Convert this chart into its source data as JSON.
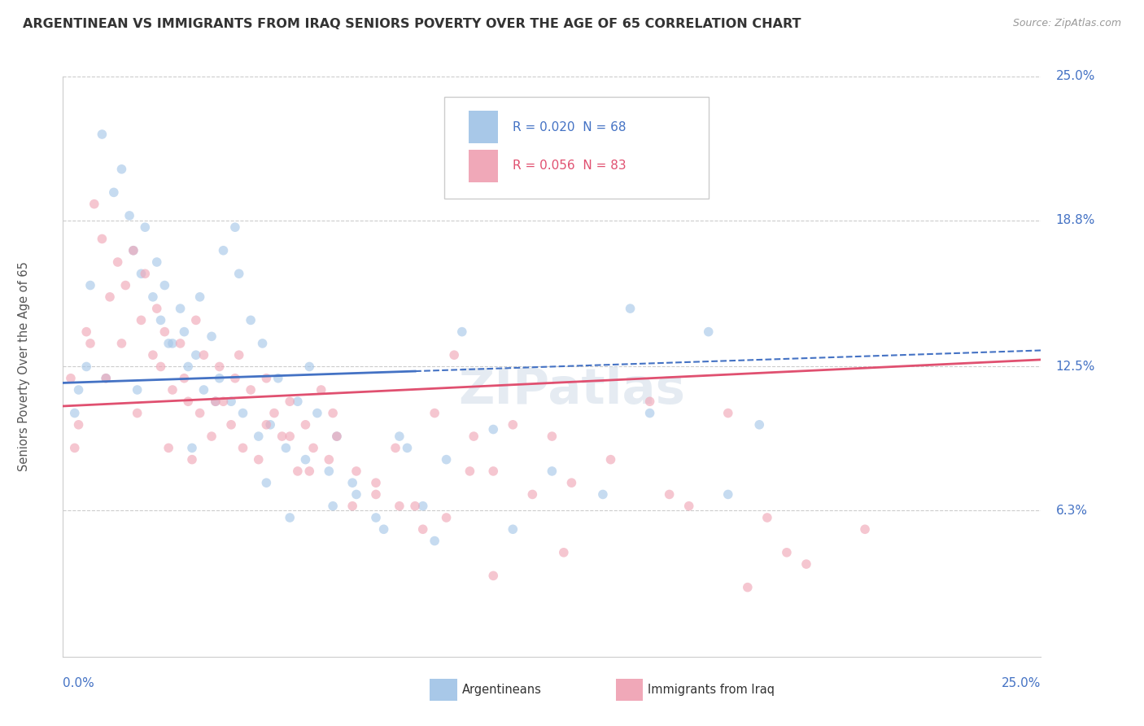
{
  "title": "ARGENTINEAN VS IMMIGRANTS FROM IRAQ SENIORS POVERTY OVER THE AGE OF 65 CORRELATION CHART",
  "source": "Source: ZipAtlas.com",
  "xmin": 0.0,
  "xmax": 25.0,
  "ymin": 0.0,
  "ymax": 25.0,
  "ylabel_vals": [
    6.3,
    12.5,
    18.8,
    25.0
  ],
  "ylabel_labels": [
    "6.3%",
    "12.5%",
    "18.8%",
    "25.0%"
  ],
  "color_blue": "#a8c8e8",
  "color_pink": "#f0a8b8",
  "color_text_blue": "#4472c4",
  "color_text_pink": "#e05070",
  "color_grid": "#cccccc",
  "trend_blue_x0": 0.0,
  "trend_blue_y0": 11.8,
  "trend_blue_x1": 25.0,
  "trend_blue_y1": 13.2,
  "trend_pink_x0": 0.0,
  "trend_pink_y0": 10.8,
  "trend_pink_x1": 25.0,
  "trend_pink_y1": 12.8,
  "trend_blue_solid_end": 9.0,
  "watermark": "ZIPatlas",
  "legend_text1_r": "R = 0.020",
  "legend_text1_n": "  N = 68",
  "legend_text2_r": "R = 0.056",
  "legend_text2_n": "  N = 83",
  "argentineans_x": [
    0.4,
    0.6,
    1.0,
    1.3,
    1.5,
    1.7,
    1.8,
    2.0,
    2.1,
    2.3,
    2.4,
    2.5,
    2.6,
    2.8,
    3.0,
    3.1,
    3.2,
    3.4,
    3.5,
    3.6,
    3.8,
    4.0,
    4.1,
    4.3,
    4.5,
    4.6,
    4.8,
    5.0,
    5.1,
    5.3,
    5.5,
    5.7,
    6.0,
    6.2,
    6.5,
    6.8,
    7.0,
    7.5,
    8.2,
    8.8,
    9.5,
    10.2,
    11.0,
    11.5,
    12.5,
    13.8,
    15.0,
    16.5,
    17.8,
    0.3,
    0.7,
    1.1,
    1.9,
    2.7,
    3.3,
    3.9,
    4.4,
    5.2,
    5.8,
    6.3,
    6.9,
    7.4,
    8.0,
    8.6,
    9.2,
    9.8,
    14.5,
    17.0
  ],
  "argentineans_y": [
    11.5,
    12.5,
    22.5,
    20.0,
    21.0,
    19.0,
    17.5,
    16.5,
    18.5,
    15.5,
    17.0,
    14.5,
    16.0,
    13.5,
    15.0,
    14.0,
    12.5,
    13.0,
    15.5,
    11.5,
    13.8,
    12.0,
    17.5,
    11.0,
    16.5,
    10.5,
    14.5,
    9.5,
    13.5,
    10.0,
    12.0,
    9.0,
    11.0,
    8.5,
    10.5,
    8.0,
    9.5,
    7.0,
    5.5,
    9.0,
    5.0,
    14.0,
    9.8,
    5.5,
    8.0,
    7.0,
    10.5,
    14.0,
    10.0,
    10.5,
    16.0,
    12.0,
    11.5,
    13.5,
    9.0,
    11.0,
    18.5,
    7.5,
    6.0,
    12.5,
    6.5,
    7.5,
    6.0,
    9.5,
    6.5,
    8.5,
    15.0,
    7.0
  ],
  "iraq_x": [
    0.2,
    0.4,
    0.6,
    0.8,
    1.0,
    1.2,
    1.4,
    1.5,
    1.6,
    1.8,
    2.0,
    2.1,
    2.3,
    2.4,
    2.5,
    2.6,
    2.8,
    3.0,
    3.1,
    3.2,
    3.4,
    3.5,
    3.6,
    3.8,
    4.0,
    4.1,
    4.3,
    4.5,
    4.6,
    4.8,
    5.0,
    5.2,
    5.4,
    5.6,
    5.8,
    6.0,
    6.2,
    6.4,
    6.6,
    6.8,
    7.0,
    7.5,
    8.0,
    8.5,
    9.0,
    9.5,
    10.0,
    10.5,
    11.0,
    11.5,
    12.0,
    12.5,
    13.0,
    14.0,
    15.0,
    16.0,
    17.0,
    18.0,
    18.5,
    0.3,
    0.7,
    1.1,
    1.9,
    2.7,
    3.3,
    3.9,
    4.4,
    5.2,
    5.8,
    6.3,
    6.9,
    7.4,
    8.0,
    8.6,
    9.2,
    9.8,
    10.4,
    11.0,
    12.8,
    15.5,
    17.5,
    19.0,
    20.5
  ],
  "iraq_y": [
    12.0,
    10.0,
    14.0,
    19.5,
    18.0,
    15.5,
    17.0,
    13.5,
    16.0,
    17.5,
    14.5,
    16.5,
    13.0,
    15.0,
    12.5,
    14.0,
    11.5,
    13.5,
    12.0,
    11.0,
    14.5,
    10.5,
    13.0,
    9.5,
    12.5,
    11.0,
    10.0,
    13.0,
    9.0,
    11.5,
    8.5,
    12.0,
    10.5,
    9.5,
    11.0,
    8.0,
    10.0,
    9.0,
    11.5,
    8.5,
    9.5,
    8.0,
    7.5,
    9.0,
    6.5,
    10.5,
    13.0,
    9.5,
    8.0,
    10.0,
    7.0,
    9.5,
    7.5,
    8.5,
    11.0,
    6.5,
    10.5,
    6.0,
    4.5,
    9.0,
    13.5,
    12.0,
    10.5,
    9.0,
    8.5,
    11.0,
    12.0,
    10.0,
    9.5,
    8.0,
    10.5,
    6.5,
    7.0,
    6.5,
    5.5,
    6.0,
    8.0,
    3.5,
    4.5,
    7.0,
    3.0,
    4.0,
    5.5
  ]
}
